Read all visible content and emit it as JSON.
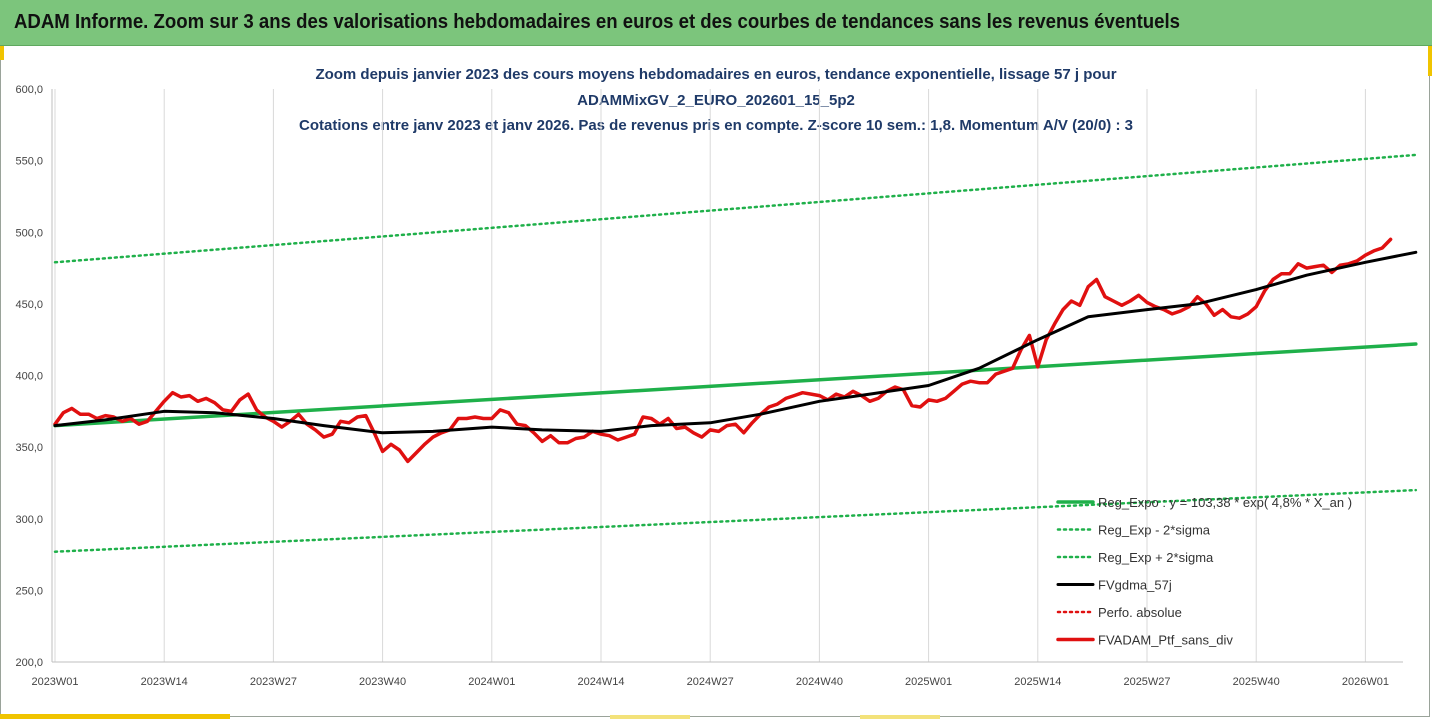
{
  "banner": {
    "title": "ADAM Informe. Zoom sur 3 ans des valorisations hebdomadaires en euros et des courbes de tendances sans les revenus éventuels"
  },
  "colors": {
    "banner": "#7cc57c",
    "reg_expo": "#1fb04a",
    "sigma": "#1fb04a",
    "fvgdma": "#000000",
    "perfo": "#e01010",
    "ptf": "#e01010",
    "title": "#1f3a68"
  },
  "chart_data": {
    "type": "line",
    "title_lines": [
      "Zoom depuis janvier 2023 des cours moyens hebdomadaires  en euros, tendance exponentielle, lissage 57 j pour",
      "ADAMMixGV_2_EURO_202601_15_5p2",
      "Cotations entre janv 2023 et janv 2026. Pas de revenus pris en compte. Z-score 10 sem.: 1,8. Momentum A/V (20/0) : 3"
    ],
    "ylim": [
      200,
      600
    ],
    "y_ticks": [
      "200,0",
      "250,0",
      "300,0",
      "350,0",
      "400,0",
      "450,0",
      "500,0",
      "550,0",
      "600,0"
    ],
    "x_ticks": [
      "2023W01",
      "2023W14",
      "2023W27",
      "2023W40",
      "2024W01",
      "2024W14",
      "2024W27",
      "2024W40",
      "2025W01",
      "2025W14",
      "2025W27",
      "2025W40",
      "2026W01"
    ],
    "x_tick_weeks": [
      0,
      13,
      26,
      39,
      52,
      65,
      78,
      91,
      104,
      117,
      130,
      143,
      156
    ],
    "grid": "vertical",
    "legend_position": "bottom-right",
    "legend": [
      "Reg_Expo : y = 103,38 * exp( 4,8% *  X_an )",
      "Reg_Exp - 2*sigma",
      "Reg_Exp + 2*sigma",
      "FVgdma_57j",
      "Perfo. absolue",
      "FVADAM_Ptf_sans_div"
    ],
    "series": [
      {
        "name": "Reg_Expo : y = 103,38 * exp( 4,8% *  X_an )",
        "style": "solid",
        "points": [
          [
            0,
            365
          ],
          [
            162,
            422
          ]
        ]
      },
      {
        "name": "Reg_Exp - 2*sigma",
        "style": "dotted",
        "points": [
          [
            0,
            277
          ],
          [
            162,
            320
          ]
        ]
      },
      {
        "name": "Reg_Exp + 2*sigma",
        "style": "dotted",
        "points": [
          [
            0,
            479
          ],
          [
            162,
            554
          ]
        ]
      },
      {
        "name": "FVgdma_57j",
        "style": "solid",
        "points": [
          [
            0,
            365
          ],
          [
            6,
            369
          ],
          [
            13,
            375
          ],
          [
            19,
            374
          ],
          [
            26,
            370
          ],
          [
            32,
            365
          ],
          [
            39,
            360
          ],
          [
            45,
            361
          ],
          [
            52,
            364
          ],
          [
            58,
            362
          ],
          [
            65,
            361
          ],
          [
            71,
            365
          ],
          [
            78,
            367
          ],
          [
            84,
            373
          ],
          [
            91,
            382
          ],
          [
            97,
            387
          ],
          [
            104,
            393
          ],
          [
            110,
            405
          ],
          [
            117,
            425
          ],
          [
            123,
            441
          ],
          [
            130,
            446
          ],
          [
            136,
            450
          ],
          [
            143,
            460
          ],
          [
            149,
            470
          ],
          [
            156,
            479
          ],
          [
            162,
            486
          ]
        ]
      },
      {
        "name": "FVADAM_Ptf_sans_div",
        "style": "solid",
        "values": [
          366,
          374,
          377,
          373,
          373,
          370,
          372,
          371,
          368,
          370,
          366,
          368,
          375,
          382,
          388,
          385,
          386,
          382,
          384,
          381,
          376,
          375,
          383,
          387,
          376,
          371,
          368,
          364,
          368,
          373,
          366,
          362,
          357,
          359,
          368,
          367,
          371,
          372,
          360,
          347,
          352,
          348,
          340,
          346,
          352,
          357,
          360,
          362,
          370,
          370,
          371,
          370,
          370,
          376,
          374,
          366,
          365,
          360,
          354,
          358,
          353,
          353,
          356,
          357,
          361,
          359,
          358,
          355,
          357,
          359,
          371,
          370,
          366,
          370,
          363,
          364,
          360,
          357,
          362,
          361,
          365,
          366,
          360,
          367,
          373,
          378,
          380,
          384,
          386,
          388,
          387,
          386,
          383,
          387,
          385,
          389,
          386,
          382,
          384,
          389,
          392,
          390,
          379,
          378,
          383,
          382,
          384,
          389,
          394,
          396,
          395,
          395,
          401,
          403,
          405,
          418,
          428,
          406,
          425,
          436,
          446,
          452,
          449,
          462,
          467,
          455,
          452,
          449,
          452,
          456,
          451,
          448,
          446,
          443,
          445,
          448,
          455,
          450,
          442,
          446,
          441,
          440,
          443,
          448,
          459,
          467,
          471,
          471,
          478,
          475,
          476,
          477,
          472,
          477,
          478,
          480,
          484,
          487,
          489,
          495
        ]
      }
    ]
  }
}
